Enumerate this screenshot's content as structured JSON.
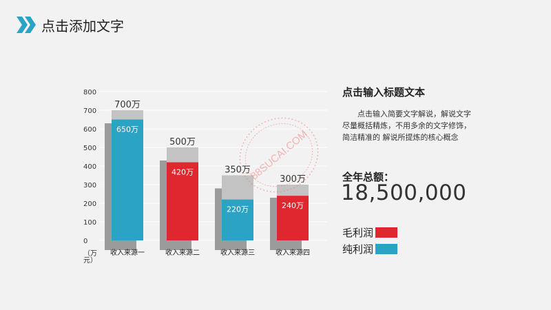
{
  "header": {
    "title": "点击添加文字",
    "icon": "double-chevron-icon",
    "accent": "#2aa3c4"
  },
  "panel": {
    "title": "点击输入标题文本",
    "description": "点击输入简要文字解说，解说文字尽量概括精炼，不用多余的文字修饰，简洁精准的 解说所提炼的核心概念",
    "total_label": "全年总额：",
    "total_value": "18,500,000"
  },
  "legend": [
    {
      "label": "毛利润",
      "color": "#e0262f"
    },
    {
      "label": "纯利润",
      "color": "#2aa3c4"
    }
  ],
  "watermark": "88SUCAI.COM",
  "chart_data": {
    "type": "bar",
    "categories": [
      "收入来源一",
      "收入来源二",
      "收入来源三",
      "收入来源四"
    ],
    "series": [
      {
        "name": "",
        "values": [
          700,
          500,
          350,
          300
        ],
        "labels": [
          "700万",
          "500万",
          "350万",
          "300万"
        ],
        "color": "#c3c3c3"
      },
      {
        "name": "",
        "values": [
          650,
          420,
          220,
          240
        ],
        "labels": [
          "650万",
          "420万",
          "220万",
          "240万"
        ],
        "colors": [
          "#2aa3c4",
          "#e0262f",
          "#2aa3c4",
          "#e0262f"
        ]
      }
    ],
    "yticks": [
      0,
      100,
      200,
      300,
      400,
      500,
      600,
      700,
      800
    ],
    "ylim": [
      0,
      800
    ],
    "ylabel": "（万元）",
    "grid": true
  }
}
